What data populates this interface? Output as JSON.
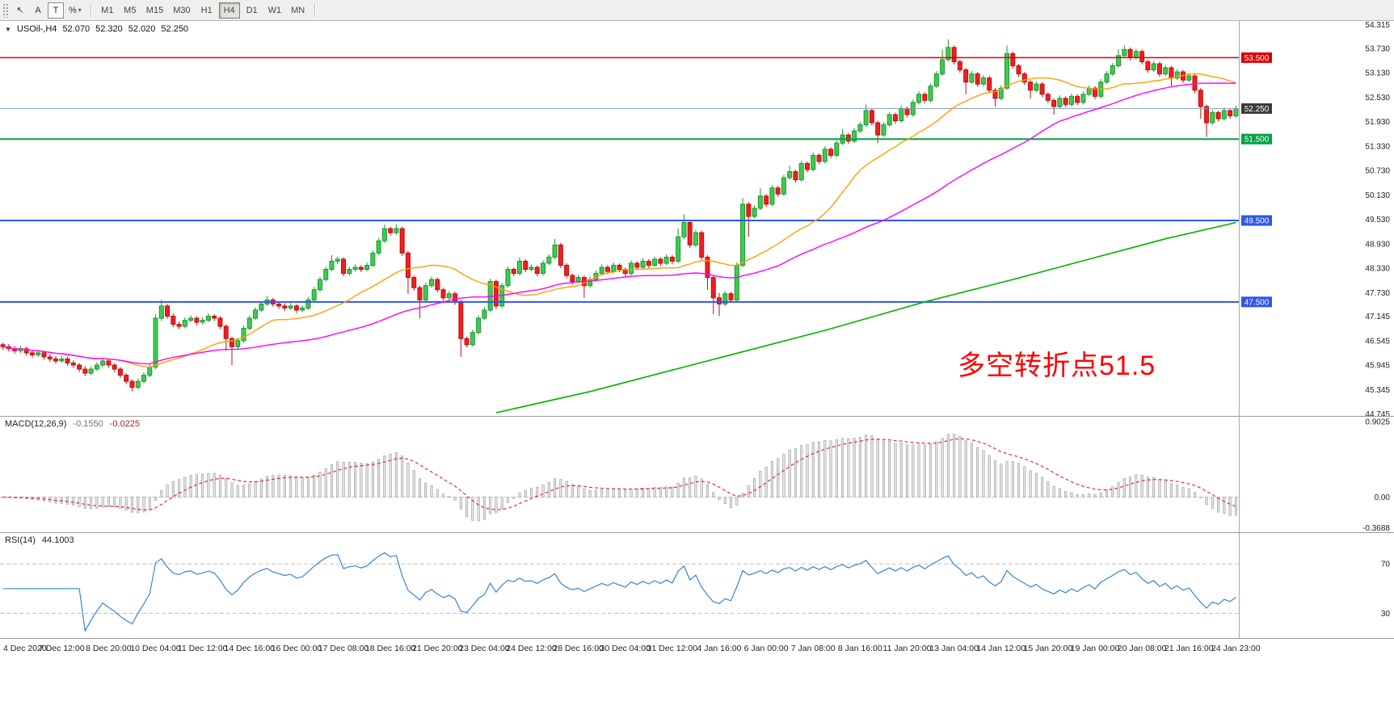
{
  "toolbar": {
    "tool_buttons": [
      {
        "label": "↖"
      },
      {
        "label": "A"
      },
      {
        "label": "T"
      },
      {
        "label": "%"
      }
    ],
    "icons": {
      "caret_down": "▾"
    },
    "timeframes": [
      "M1",
      "M5",
      "M15",
      "M30",
      "H1",
      "H4",
      "D1",
      "W1",
      "MN"
    ],
    "active_timeframe": "H4"
  },
  "symbol_info": {
    "icon": "▼",
    "name": "USOil-,H4",
    "open": "52.070",
    "high": "52.320",
    "low": "52.020",
    "close": "52.250"
  },
  "annotation": {
    "text": "多空转折点51.5",
    "color": "#fe0000"
  },
  "price_scale": {
    "ticks": [
      "54.315",
      "53.730",
      "53.130",
      "52.530",
      "51.930",
      "51.330",
      "50.730",
      "50.130",
      "49.530",
      "48.930",
      "48.330",
      "47.730",
      "47.145",
      "46.545",
      "45.945",
      "45.345",
      "44.745"
    ],
    "price_boxes": [
      {
        "label": "53.500",
        "bg": "#dd0000"
      },
      {
        "label": "52.250",
        "bg": "#3a3a3a"
      },
      {
        "label": "51.500",
        "bg": "#00a243"
      },
      {
        "label": "49.500",
        "bg": "#2e56e8"
      },
      {
        "label": "47.500",
        "bg": "#2e56e8"
      }
    ]
  },
  "indicators": {
    "macd": {
      "label": "MACD(12,26,9)",
      "main_value": "-0.1550",
      "signal_value": "-0.0225",
      "scale_top": "0.9025",
      "scale_zero": "0.00",
      "scale_bottom": "-0.3688"
    },
    "rsi": {
      "label": "RSI(14)",
      "value": "44.1003",
      "level_high": "70",
      "level_low": "30"
    }
  },
  "time_axis": {
    "labels": [
      "4 Dec 2020",
      "7 Dec 12:00",
      "8 Dec 20:00",
      "10 Dec 04:00",
      "11 Dec 12:00",
      "14 Dec 16:00",
      "16 Dec 00:00",
      "17 Dec 08:00",
      "18 Dec 16:00",
      "21 Dec 20:00",
      "23 Dec 04:00",
      "24 Dec 12:00",
      "28 Dec 16:00",
      "30 Dec 04:00",
      "31 Dec 12:00",
      "4 Jan 16:00",
      "6 Jan 00:00",
      "7 Jan 08:00",
      "8 Jan 16:00",
      "11 Jan 20:00",
      "13 Jan 04:00",
      "14 Jan 12:00",
      "15 Jan 20:00",
      "19 Jan 00:00",
      "20 Jan 08:00",
      "21 Jan 16:00",
      "24 Jan 23:00"
    ]
  },
  "chart_data": {
    "type": "candlestick",
    "symbol": "USOil-",
    "timeframe": "H4",
    "title": "USOil-,H4",
    "price_range": {
      "min": 44.7,
      "max": 54.4
    },
    "bull_color": "#3fca51",
    "bull_stroke": "#1e9630",
    "bear_color": "#f31d1d",
    "bear_stroke": "#bb1010",
    "ohlc": [
      [
        46.45,
        46.5,
        46.32,
        46.4
      ],
      [
        46.4,
        46.47,
        46.28,
        46.35
      ],
      [
        46.35,
        46.42,
        46.23,
        46.3
      ],
      [
        46.3,
        46.42,
        46.25,
        46.35
      ],
      [
        46.35,
        46.4,
        46.18,
        46.25
      ],
      [
        46.25,
        46.32,
        46.13,
        46.2
      ],
      [
        46.2,
        46.32,
        46.15,
        46.25
      ],
      [
        46.25,
        46.3,
        46.08,
        46.15
      ],
      [
        46.15,
        46.22,
        46.03,
        46.1
      ],
      [
        46.1,
        46.17,
        45.98,
        46.05
      ],
      [
        46.05,
        46.17,
        46.0,
        46.1
      ],
      [
        46.1,
        46.15,
        45.93,
        46.0
      ],
      [
        46.0,
        46.07,
        45.88,
        45.95
      ],
      [
        45.95,
        46.0,
        45.78,
        45.85
      ],
      [
        45.85,
        45.92,
        45.68,
        45.75
      ],
      [
        45.75,
        45.92,
        45.7,
        45.85
      ],
      [
        45.85,
        46.02,
        45.8,
        45.95
      ],
      [
        45.95,
        46.12,
        45.9,
        46.05
      ],
      [
        46.05,
        46.1,
        45.88,
        45.95
      ],
      [
        45.95,
        46.0,
        45.78,
        45.85
      ],
      [
        45.85,
        45.9,
        45.63,
        45.7
      ],
      [
        45.7,
        45.75,
        45.48,
        45.55
      ],
      [
        45.55,
        45.6,
        45.3,
        45.4
      ],
      [
        45.4,
        45.62,
        45.35,
        45.55
      ],
      [
        45.55,
        45.77,
        45.5,
        45.7
      ],
      [
        45.7,
        45.97,
        45.65,
        45.9
      ],
      [
        45.9,
        47.2,
        45.85,
        47.1
      ],
      [
        47.1,
        47.55,
        47.03,
        47.4
      ],
      [
        47.4,
        47.45,
        47.08,
        47.15
      ],
      [
        47.15,
        47.22,
        46.88,
        46.95
      ],
      [
        46.95,
        47.02,
        46.83,
        46.9
      ],
      [
        46.9,
        47.12,
        46.85,
        47.05
      ],
      [
        47.05,
        47.17,
        47.0,
        47.1
      ],
      [
        47.1,
        47.15,
        46.93,
        47.0
      ],
      [
        47.0,
        47.12,
        46.95,
        47.05
      ],
      [
        47.05,
        47.22,
        47.0,
        47.15
      ],
      [
        47.15,
        47.2,
        47.03,
        47.1
      ],
      [
        47.1,
        47.15,
        46.83,
        46.9
      ],
      [
        46.9,
        46.95,
        46.3,
        46.6
      ],
      [
        46.6,
        46.65,
        45.95,
        46.4
      ],
      [
        46.4,
        46.62,
        46.33,
        46.55
      ],
      [
        46.55,
        46.92,
        46.5,
        46.85
      ],
      [
        46.85,
        47.17,
        46.8,
        47.1
      ],
      [
        47.1,
        47.37,
        47.05,
        47.3
      ],
      [
        47.3,
        47.52,
        47.25,
        47.45
      ],
      [
        47.45,
        47.65,
        47.4,
        47.55
      ],
      [
        47.55,
        47.6,
        47.38,
        47.45
      ],
      [
        47.45,
        47.52,
        47.33,
        47.4
      ],
      [
        47.4,
        47.47,
        47.28,
        47.35
      ],
      [
        47.35,
        47.47,
        47.3,
        47.4
      ],
      [
        47.4,
        47.45,
        47.23,
        47.3
      ],
      [
        47.3,
        47.42,
        47.25,
        47.35
      ],
      [
        47.35,
        47.62,
        47.3,
        47.55
      ],
      [
        47.55,
        47.87,
        47.5,
        47.8
      ],
      [
        47.8,
        48.12,
        47.75,
        48.05
      ],
      [
        48.05,
        48.37,
        48.0,
        48.3
      ],
      [
        48.3,
        48.65,
        48.25,
        48.5
      ],
      [
        48.5,
        48.62,
        48.43,
        48.55
      ],
      [
        48.55,
        48.6,
        48.13,
        48.2
      ],
      [
        48.2,
        48.37,
        48.15,
        48.3
      ],
      [
        48.3,
        48.42,
        48.25,
        48.35
      ],
      [
        48.35,
        48.4,
        48.23,
        48.3
      ],
      [
        48.3,
        48.47,
        48.25,
        48.4
      ],
      [
        48.4,
        48.77,
        48.35,
        48.7
      ],
      [
        48.7,
        49.07,
        48.65,
        49.0
      ],
      [
        49.0,
        49.4,
        48.95,
        49.3
      ],
      [
        49.3,
        49.35,
        49.13,
        49.2
      ],
      [
        49.2,
        49.4,
        49.15,
        49.3
      ],
      [
        49.3,
        49.35,
        48.63,
        48.7
      ],
      [
        48.7,
        48.75,
        47.7,
        48.1
      ],
      [
        48.1,
        48.15,
        47.78,
        47.85
      ],
      [
        47.85,
        47.9,
        47.1,
        47.55
      ],
      [
        47.55,
        47.97,
        47.5,
        47.9
      ],
      [
        47.9,
        48.12,
        47.85,
        48.05
      ],
      [
        48.05,
        48.1,
        47.73,
        47.8
      ],
      [
        47.8,
        47.85,
        47.53,
        47.6
      ],
      [
        47.6,
        47.77,
        47.55,
        47.7
      ],
      [
        47.7,
        47.75,
        47.43,
        47.5
      ],
      [
        47.5,
        47.55,
        46.15,
        46.6
      ],
      [
        46.6,
        46.65,
        46.38,
        46.45
      ],
      [
        46.45,
        46.82,
        46.4,
        46.75
      ],
      [
        46.75,
        47.17,
        46.7,
        47.1
      ],
      [
        47.1,
        47.37,
        47.05,
        47.3
      ],
      [
        47.3,
        48.07,
        47.25,
        48.0
      ],
      [
        48.0,
        48.05,
        47.33,
        47.4
      ],
      [
        47.4,
        47.97,
        47.35,
        47.9
      ],
      [
        47.9,
        48.37,
        47.85,
        48.3
      ],
      [
        48.3,
        48.35,
        48.13,
        48.2
      ],
      [
        48.2,
        48.6,
        48.15,
        48.5
      ],
      [
        48.5,
        48.55,
        48.23,
        48.3
      ],
      [
        48.3,
        48.42,
        48.25,
        48.35
      ],
      [
        48.35,
        48.4,
        48.13,
        48.2
      ],
      [
        48.2,
        48.52,
        48.15,
        48.45
      ],
      [
        48.45,
        48.67,
        48.4,
        48.6
      ],
      [
        48.6,
        49.05,
        48.55,
        48.9
      ],
      [
        48.9,
        48.95,
        48.33,
        48.4
      ],
      [
        48.4,
        48.45,
        48.08,
        48.15
      ],
      [
        48.15,
        48.2,
        47.93,
        48.0
      ],
      [
        48.0,
        48.17,
        47.95,
        48.1
      ],
      [
        48.1,
        48.15,
        47.6,
        47.9
      ],
      [
        47.9,
        48.12,
        47.85,
        48.05
      ],
      [
        48.05,
        48.27,
        48.0,
        48.2
      ],
      [
        48.2,
        48.42,
        48.15,
        48.35
      ],
      [
        48.35,
        48.4,
        48.18,
        48.25
      ],
      [
        48.25,
        48.47,
        48.2,
        48.4
      ],
      [
        48.4,
        48.45,
        48.23,
        48.3
      ],
      [
        48.3,
        48.35,
        48.13,
        48.2
      ],
      [
        48.2,
        48.52,
        48.15,
        48.45
      ],
      [
        48.45,
        48.5,
        48.28,
        48.35
      ],
      [
        48.35,
        48.57,
        48.3,
        48.5
      ],
      [
        48.5,
        48.55,
        48.33,
        48.4
      ],
      [
        48.4,
        48.62,
        48.35,
        48.55
      ],
      [
        48.55,
        48.6,
        48.38,
        48.45
      ],
      [
        48.45,
        48.67,
        48.4,
        48.6
      ],
      [
        48.6,
        48.65,
        48.43,
        48.5
      ],
      [
        48.5,
        49.3,
        48.45,
        49.1
      ],
      [
        49.1,
        49.65,
        49.05,
        49.45
      ],
      [
        49.45,
        49.5,
        48.83,
        48.9
      ],
      [
        48.9,
        49.27,
        48.85,
        49.2
      ],
      [
        49.2,
        49.25,
        48.53,
        48.6
      ],
      [
        48.6,
        48.65,
        47.8,
        48.1
      ],
      [
        48.1,
        48.15,
        47.2,
        47.6
      ],
      [
        47.6,
        47.72,
        47.15,
        47.45
      ],
      [
        47.45,
        47.77,
        47.4,
        47.7
      ],
      [
        47.7,
        47.75,
        47.48,
        47.55
      ],
      [
        47.55,
        48.47,
        47.5,
        48.4
      ],
      [
        48.4,
        50.05,
        48.35,
        49.9
      ],
      [
        49.9,
        49.95,
        49.1,
        49.6
      ],
      [
        49.6,
        49.87,
        49.55,
        49.8
      ],
      [
        49.8,
        50.3,
        49.75,
        50.1
      ],
      [
        50.1,
        50.15,
        49.83,
        49.9
      ],
      [
        49.9,
        50.37,
        49.85,
        50.3
      ],
      [
        50.3,
        50.35,
        50.08,
        50.15
      ],
      [
        50.15,
        50.62,
        50.1,
        50.55
      ],
      [
        50.55,
        50.85,
        50.5,
        50.7
      ],
      [
        50.7,
        50.75,
        50.43,
        50.5
      ],
      [
        50.5,
        50.97,
        50.45,
        50.9
      ],
      [
        50.9,
        50.95,
        50.68,
        50.75
      ],
      [
        50.75,
        51.17,
        50.7,
        51.1
      ],
      [
        51.1,
        51.15,
        50.88,
        50.95
      ],
      [
        50.95,
        51.32,
        50.9,
        51.25
      ],
      [
        51.25,
        51.3,
        51.03,
        51.1
      ],
      [
        51.1,
        51.47,
        51.05,
        51.4
      ],
      [
        51.4,
        51.75,
        51.35,
        51.6
      ],
      [
        51.6,
        51.65,
        51.38,
        51.45
      ],
      [
        51.45,
        51.77,
        51.4,
        51.7
      ],
      [
        51.7,
        51.92,
        51.65,
        51.85
      ],
      [
        51.85,
        52.35,
        51.8,
        52.2
      ],
      [
        52.2,
        52.25,
        51.83,
        51.9
      ],
      [
        51.9,
        51.95,
        51.4,
        51.6
      ],
      [
        51.6,
        51.92,
        51.55,
        51.85
      ],
      [
        51.85,
        52.17,
        51.8,
        52.1
      ],
      [
        52.1,
        52.15,
        51.88,
        51.95
      ],
      [
        51.95,
        52.32,
        51.9,
        52.25
      ],
      [
        52.25,
        52.3,
        52.03,
        52.1
      ],
      [
        52.1,
        52.47,
        52.05,
        52.4
      ],
      [
        52.4,
        52.67,
        52.35,
        52.6
      ],
      [
        52.6,
        52.65,
        52.38,
        52.45
      ],
      [
        52.45,
        52.87,
        52.4,
        52.8
      ],
      [
        52.8,
        53.17,
        52.75,
        53.1
      ],
      [
        53.1,
        53.7,
        53.05,
        53.45
      ],
      [
        53.45,
        53.95,
        53.4,
        53.75
      ],
      [
        53.75,
        53.8,
        53.33,
        53.4
      ],
      [
        53.4,
        53.45,
        53.13,
        53.2
      ],
      [
        53.2,
        53.25,
        52.6,
        52.9
      ],
      [
        52.9,
        53.17,
        52.85,
        53.1
      ],
      [
        53.1,
        53.15,
        52.78,
        52.85
      ],
      [
        52.85,
        53.07,
        52.8,
        53.0
      ],
      [
        53.0,
        53.05,
        52.63,
        52.7
      ],
      [
        52.7,
        52.75,
        52.3,
        52.5
      ],
      [
        52.5,
        52.82,
        52.45,
        52.75
      ],
      [
        52.75,
        53.8,
        52.7,
        53.6
      ],
      [
        53.6,
        53.65,
        53.23,
        53.3
      ],
      [
        53.3,
        53.35,
        53.03,
        53.1
      ],
      [
        53.1,
        53.15,
        52.83,
        52.9
      ],
      [
        52.9,
        52.95,
        52.5,
        52.7
      ],
      [
        52.7,
        52.92,
        52.65,
        52.85
      ],
      [
        52.85,
        52.9,
        52.53,
        52.6
      ],
      [
        52.6,
        52.65,
        52.38,
        52.45
      ],
      [
        52.45,
        52.5,
        52.1,
        52.3
      ],
      [
        52.3,
        52.57,
        52.25,
        52.5
      ],
      [
        52.5,
        52.55,
        52.28,
        52.35
      ],
      [
        52.35,
        52.62,
        52.3,
        52.55
      ],
      [
        52.55,
        52.6,
        52.33,
        52.4
      ],
      [
        52.4,
        52.67,
        52.35,
        52.6
      ],
      [
        52.6,
        52.82,
        52.55,
        52.75
      ],
      [
        52.75,
        52.8,
        52.48,
        52.55
      ],
      [
        52.55,
        52.97,
        52.5,
        52.9
      ],
      [
        52.9,
        53.17,
        52.85,
        53.1
      ],
      [
        53.1,
        53.37,
        53.05,
        53.3
      ],
      [
        53.3,
        53.7,
        53.25,
        53.55
      ],
      [
        53.55,
        53.8,
        53.5,
        53.7
      ],
      [
        53.7,
        53.75,
        53.43,
        53.5
      ],
      [
        53.5,
        53.72,
        53.45,
        53.65
      ],
      [
        53.65,
        53.7,
        53.33,
        53.4
      ],
      [
        53.4,
        53.45,
        53.13,
        53.2
      ],
      [
        53.2,
        53.42,
        53.15,
        53.35
      ],
      [
        53.35,
        53.4,
        53.03,
        53.1
      ],
      [
        53.1,
        53.32,
        53.05,
        53.25
      ],
      [
        53.25,
        53.3,
        52.8,
        53.0
      ],
      [
        53.0,
        53.22,
        52.95,
        53.15
      ],
      [
        53.15,
        53.2,
        52.88,
        52.95
      ],
      [
        52.95,
        53.12,
        52.9,
        53.05
      ],
      [
        53.05,
        53.1,
        52.63,
        52.7
      ],
      [
        52.7,
        52.75,
        52.0,
        52.3
      ],
      [
        52.3,
        52.35,
        51.55,
        51.9
      ],
      [
        51.9,
        52.22,
        51.85,
        52.15
      ],
      [
        52.15,
        52.2,
        51.93,
        52.0
      ],
      [
        52.0,
        52.27,
        51.95,
        52.2
      ],
      [
        52.2,
        52.25,
        52.0,
        52.07
      ],
      [
        52.07,
        52.32,
        52.02,
        52.25
      ]
    ],
    "hlines": [
      {
        "price": 53.5,
        "color": "#e00000",
        "width": 1.4
      },
      {
        "price": 51.5,
        "color": "#00a243",
        "width": 2
      },
      {
        "price": 49.5,
        "color": "#2e56e8",
        "width": 2
      },
      {
        "price": 47.5,
        "color": "#2e56e8",
        "width": 2
      }
    ],
    "bid_line": {
      "price": 52.25,
      "color": "#7f9db9"
    },
    "moving_averages": [
      {
        "period": 21,
        "color": "#ff9f00"
      },
      {
        "period": 55,
        "color": "#ff00ff"
      }
    ],
    "slow_ma_green": {
      "color": "#00b400",
      "points": [
        [
          84,
          44.78
        ],
        [
          100,
          45.3
        ],
        [
          120,
          46.05
        ],
        [
          140,
          46.8
        ],
        [
          157,
          47.5
        ],
        [
          172,
          48.05
        ],
        [
          185,
          48.55
        ],
        [
          198,
          49.05
        ],
        [
          210,
          49.45
        ]
      ]
    },
    "macd_range": {
      "min": -0.42,
      "max": 0.96
    },
    "rsi_range": {
      "min": 10,
      "max": 95
    },
    "time_label_anchor_start": 2,
    "time_label_step": 8
  }
}
